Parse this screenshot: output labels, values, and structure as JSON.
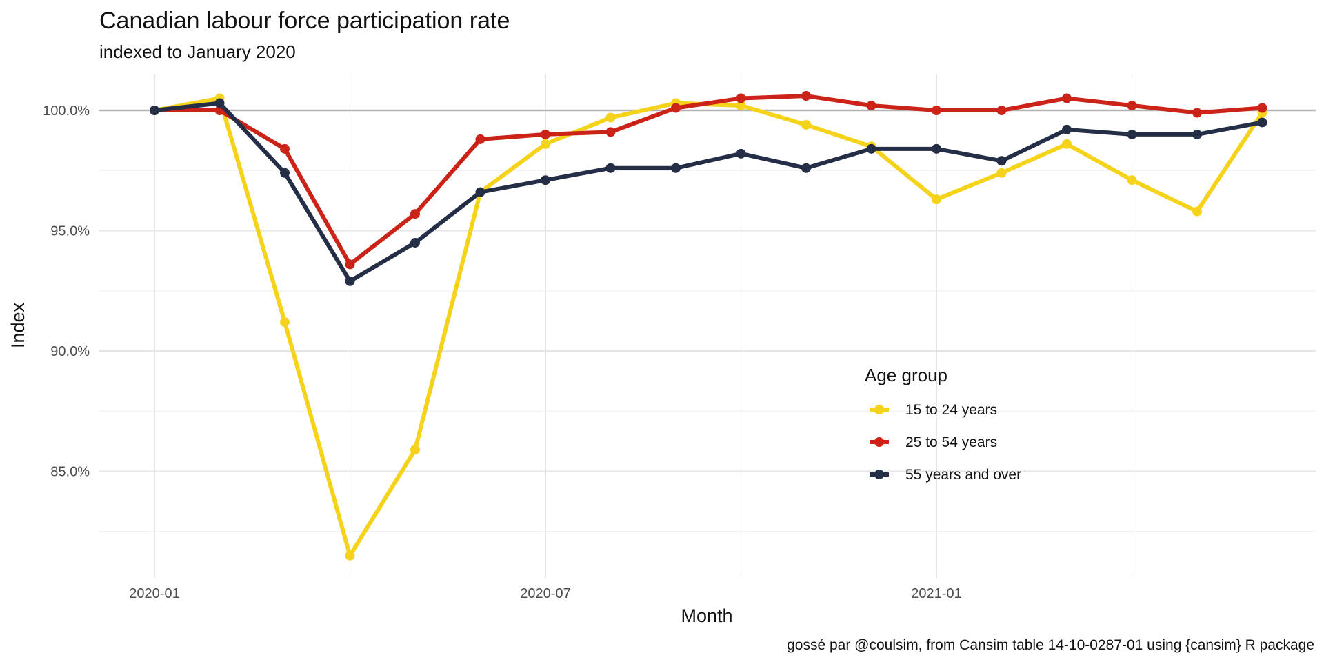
{
  "chart_data": {
    "type": "line",
    "title": "Canadian labour force participation rate",
    "subtitle": "indexed to January 2020",
    "xlabel": "Month",
    "ylabel": "Index",
    "caption": "gossé par @coulsim, from Cansim table 14-10-0287-01 using {cansim} R package",
    "x": [
      "2020-01",
      "2020-02",
      "2020-03",
      "2020-04",
      "2020-05",
      "2020-06",
      "2020-07",
      "2020-08",
      "2020-09",
      "2020-10",
      "2020-11",
      "2020-12",
      "2021-01",
      "2021-02",
      "2021-03",
      "2021-04",
      "2021-05",
      "2021-06"
    ],
    "x_tick_labels": [
      "2020-01",
      "2020-07",
      "2021-01"
    ],
    "y_tick_labels": [
      "85.0%",
      "90.0%",
      "95.0%",
      "100.0%"
    ],
    "ylim": [
      80.6,
      101.5
    ],
    "reference_line": 100,
    "grid": true,
    "legend": {
      "title": "Age group",
      "placement": "inside-right"
    },
    "series": [
      {
        "name": "15 to 24 years",
        "color": "#f5d31a",
        "values": [
          100.0,
          100.5,
          91.2,
          81.5,
          85.9,
          96.6,
          98.6,
          99.7,
          100.3,
          100.2,
          99.4,
          98.5,
          96.3,
          97.4,
          98.6,
          97.1,
          95.8,
          99.9
        ]
      },
      {
        "name": "25 to 54 years",
        "color": "#cc2318",
        "values": [
          100.0,
          100.0,
          98.4,
          93.6,
          95.7,
          98.8,
          99.0,
          99.1,
          100.1,
          100.5,
          100.6,
          100.2,
          100.0,
          100.0,
          100.5,
          100.2,
          99.9,
          100.1
        ]
      },
      {
        "name": "55 years and over",
        "color": "#252e47",
        "values": [
          100.0,
          100.3,
          97.4,
          92.9,
          94.5,
          96.6,
          97.1,
          97.6,
          97.6,
          98.2,
          97.6,
          98.4,
          98.4,
          97.9,
          99.2,
          99.0,
          99.0,
          99.5
        ]
      }
    ]
  }
}
